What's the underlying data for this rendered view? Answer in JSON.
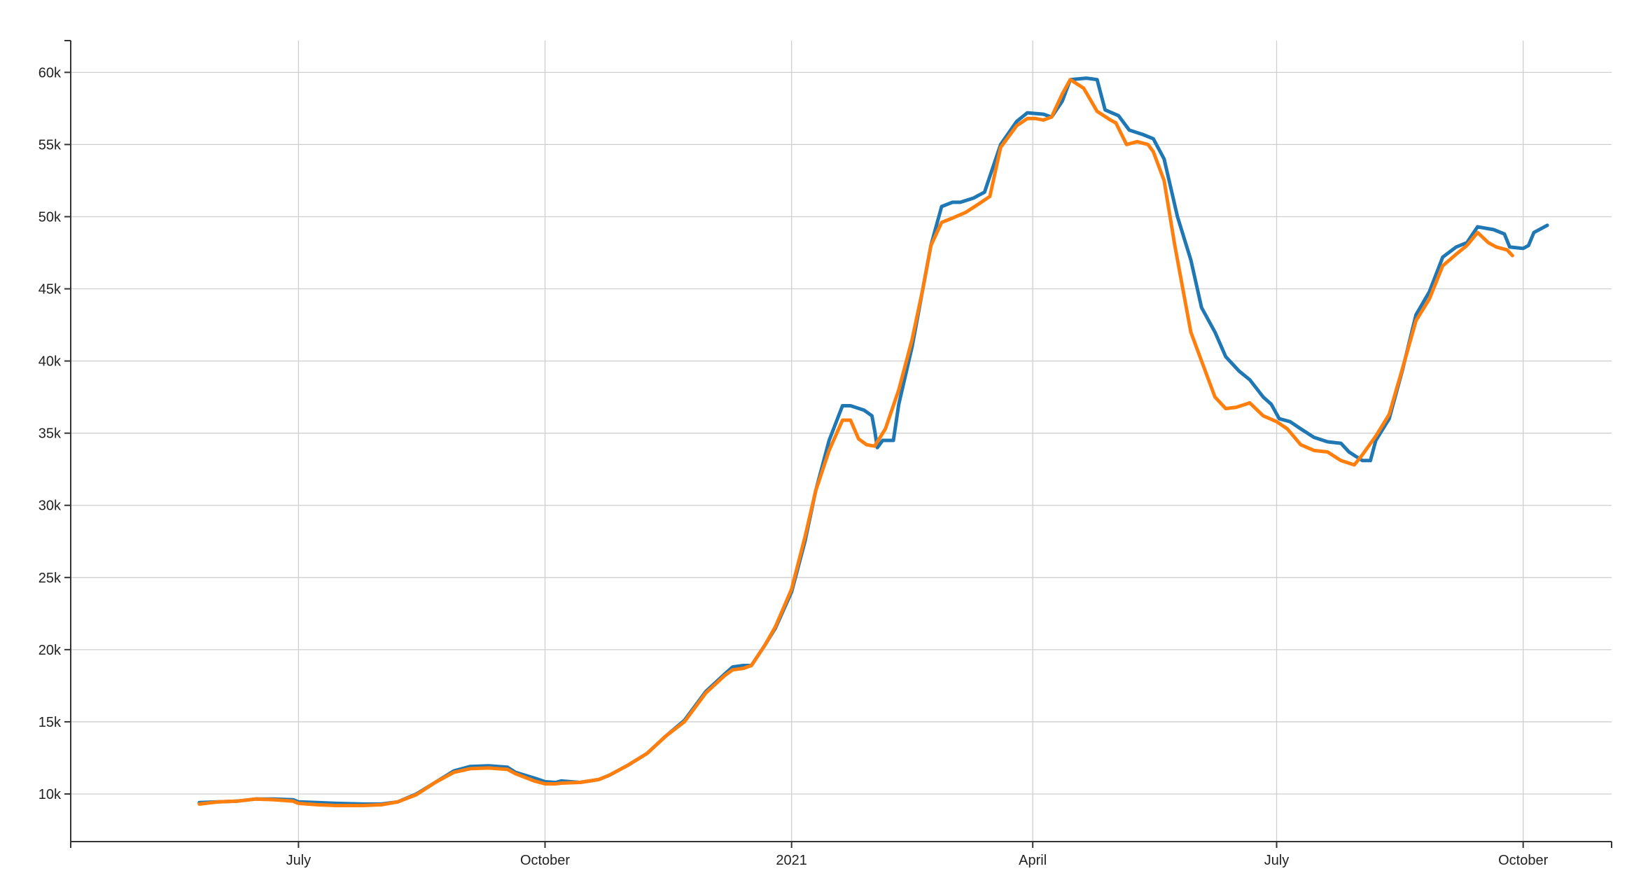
{
  "chart_data": {
    "type": "line",
    "title": "",
    "xlabel": "",
    "ylabel": "",
    "x_tick_labels": [
      "July",
      "October",
      "2021",
      "April",
      "July",
      "October"
    ],
    "x_tick_dates": [
      "2020-07-01",
      "2020-10-01",
      "2021-01-01",
      "2021-04-01",
      "2021-07-01",
      "2021-10-01"
    ],
    "y_ticks": [
      10000,
      15000,
      20000,
      25000,
      30000,
      35000,
      40000,
      45000,
      50000,
      55000,
      60000
    ],
    "y_tick_labels": [
      "10k",
      "15k",
      "20k",
      "25k",
      "30k",
      "35k",
      "40k",
      "45k",
      "50k",
      "55k",
      "60k"
    ],
    "xlim": [
      "2020-04-07",
      "2021-11-03"
    ],
    "ylim": [
      6700,
      62200
    ],
    "grid": true,
    "legend": "none",
    "series": [
      {
        "color": "#1f77b4",
        "points": [
          [
            "2020-05-25",
            9400
          ],
          [
            "2020-06-01",
            9450
          ],
          [
            "2020-06-08",
            9500
          ],
          [
            "2020-06-15",
            9650
          ],
          [
            "2020-06-22",
            9650
          ],
          [
            "2020-06-29",
            9600
          ],
          [
            "2020-07-01",
            9450
          ],
          [
            "2020-07-08",
            9400
          ],
          [
            "2020-07-15",
            9350
          ],
          [
            "2020-07-25",
            9300
          ],
          [
            "2020-08-01",
            9300
          ],
          [
            "2020-08-07",
            9450
          ],
          [
            "2020-08-14",
            10000
          ],
          [
            "2020-08-21",
            10800
          ],
          [
            "2020-08-28",
            11600
          ],
          [
            "2020-09-03",
            11900
          ],
          [
            "2020-09-10",
            11950
          ],
          [
            "2020-09-17",
            11850
          ],
          [
            "2020-09-20",
            11500
          ],
          [
            "2020-09-27",
            11100
          ],
          [
            "2020-10-01",
            10850
          ],
          [
            "2020-10-05",
            10800
          ],
          [
            "2020-10-07",
            10900
          ],
          [
            "2020-10-14",
            10800
          ],
          [
            "2020-10-21",
            11000
          ],
          [
            "2020-10-25",
            11300
          ],
          [
            "2020-11-01",
            12000
          ],
          [
            "2020-11-08",
            12800
          ],
          [
            "2020-11-15",
            14000
          ],
          [
            "2020-11-22",
            15100
          ],
          [
            "2020-11-30",
            17100
          ],
          [
            "2020-12-07",
            18300
          ],
          [
            "2020-12-10",
            18800
          ],
          [
            "2020-12-14",
            18900
          ],
          [
            "2020-12-17",
            18900
          ],
          [
            "2020-12-22",
            20300
          ],
          [
            "2020-12-26",
            21500
          ],
          [
            "2021-01-01",
            24000
          ],
          [
            "2021-01-06",
            27500
          ],
          [
            "2021-01-10",
            31000
          ],
          [
            "2021-01-15",
            34500
          ],
          [
            "2021-01-20",
            36900
          ],
          [
            "2021-01-23",
            36900
          ],
          [
            "2021-01-28",
            36600
          ],
          [
            "2021-01-31",
            36200
          ],
          [
            "2021-02-01",
            35200
          ],
          [
            "2021-02-02",
            34000
          ],
          [
            "2021-02-04",
            34500
          ],
          [
            "2021-02-08",
            34500
          ],
          [
            "2021-02-10",
            37000
          ],
          [
            "2021-02-15",
            41000
          ],
          [
            "2021-02-19",
            45000
          ],
          [
            "2021-02-22",
            48000
          ],
          [
            "2021-02-26",
            50700
          ],
          [
            "2021-03-02",
            51000
          ],
          [
            "2021-03-05",
            51000
          ],
          [
            "2021-03-10",
            51300
          ],
          [
            "2021-03-14",
            51700
          ],
          [
            "2021-03-20",
            55000
          ],
          [
            "2021-03-26",
            56600
          ],
          [
            "2021-03-30",
            57200
          ],
          [
            "2021-04-05",
            57100
          ],
          [
            "2021-04-08",
            56900
          ],
          [
            "2021-04-12",
            58000
          ],
          [
            "2021-04-15",
            59500
          ],
          [
            "2021-04-21",
            59600
          ],
          [
            "2021-04-25",
            59500
          ],
          [
            "2021-04-28",
            57400
          ],
          [
            "2021-05-03",
            57000
          ],
          [
            "2021-05-07",
            56000
          ],
          [
            "2021-05-12",
            55700
          ],
          [
            "2021-05-16",
            55400
          ],
          [
            "2021-05-20",
            54000
          ],
          [
            "2021-05-25",
            50000
          ],
          [
            "2021-05-30",
            47000
          ],
          [
            "2021-06-03",
            43700
          ],
          [
            "2021-06-08",
            42000
          ],
          [
            "2021-06-12",
            40300
          ],
          [
            "2021-06-17",
            39300
          ],
          [
            "2021-06-21",
            38700
          ],
          [
            "2021-06-26",
            37500
          ],
          [
            "2021-06-29",
            37000
          ],
          [
            "2021-07-02",
            36000
          ],
          [
            "2021-07-06",
            35800
          ],
          [
            "2021-07-10",
            35300
          ],
          [
            "2021-07-15",
            34700
          ],
          [
            "2021-07-20",
            34400
          ],
          [
            "2021-07-25",
            34300
          ],
          [
            "2021-07-28",
            33700
          ],
          [
            "2021-08-02",
            33100
          ],
          [
            "2021-08-05",
            33100
          ],
          [
            "2021-08-07",
            34500
          ],
          [
            "2021-08-12",
            36000
          ],
          [
            "2021-08-17",
            39400
          ],
          [
            "2021-08-22",
            43200
          ],
          [
            "2021-08-27",
            44800
          ],
          [
            "2021-09-01",
            47200
          ],
          [
            "2021-09-06",
            47900
          ],
          [
            "2021-09-10",
            48200
          ],
          [
            "2021-09-14",
            49300
          ],
          [
            "2021-09-20",
            49100
          ],
          [
            "2021-09-24",
            48800
          ],
          [
            "2021-09-26",
            47900
          ],
          [
            "2021-10-01",
            47800
          ],
          [
            "2021-10-03",
            48000
          ],
          [
            "2021-10-05",
            48900
          ],
          [
            "2021-10-10",
            49400
          ]
        ]
      },
      {
        "color": "#ff7f0e",
        "points": [
          [
            "2020-05-25",
            9300
          ],
          [
            "2020-06-01",
            9450
          ],
          [
            "2020-06-08",
            9500
          ],
          [
            "2020-06-15",
            9650
          ],
          [
            "2020-06-22",
            9600
          ],
          [
            "2020-06-29",
            9500
          ],
          [
            "2020-07-01",
            9350
          ],
          [
            "2020-07-08",
            9250
          ],
          [
            "2020-07-15",
            9200
          ],
          [
            "2020-07-25",
            9200
          ],
          [
            "2020-08-01",
            9250
          ],
          [
            "2020-08-07",
            9450
          ],
          [
            "2020-08-14",
            9950
          ],
          [
            "2020-08-21",
            10800
          ],
          [
            "2020-08-28",
            11500
          ],
          [
            "2020-09-03",
            11750
          ],
          [
            "2020-09-10",
            11800
          ],
          [
            "2020-09-17",
            11700
          ],
          [
            "2020-09-20",
            11400
          ],
          [
            "2020-09-27",
            10900
          ],
          [
            "2020-10-01",
            10700
          ],
          [
            "2020-10-05",
            10700
          ],
          [
            "2020-10-07",
            10750
          ],
          [
            "2020-10-14",
            10800
          ],
          [
            "2020-10-21",
            11000
          ],
          [
            "2020-10-25",
            11300
          ],
          [
            "2020-11-01",
            12000
          ],
          [
            "2020-11-08",
            12800
          ],
          [
            "2020-11-15",
            14000
          ],
          [
            "2020-11-22",
            15000
          ],
          [
            "2020-11-30",
            17000
          ],
          [
            "2020-12-07",
            18200
          ],
          [
            "2020-12-10",
            18600
          ],
          [
            "2020-12-14",
            18700
          ],
          [
            "2020-12-17",
            18900
          ],
          [
            "2020-12-22",
            20300
          ],
          [
            "2020-12-26",
            21600
          ],
          [
            "2021-01-01",
            24200
          ],
          [
            "2021-01-06",
            27800
          ],
          [
            "2021-01-10",
            31000
          ],
          [
            "2021-01-15",
            33800
          ],
          [
            "2021-01-20",
            35900
          ],
          [
            "2021-01-23",
            35900
          ],
          [
            "2021-01-26",
            34600
          ],
          [
            "2021-01-29",
            34200
          ],
          [
            "2021-02-01",
            34100
          ],
          [
            "2021-02-05",
            35300
          ],
          [
            "2021-02-10",
            38000
          ],
          [
            "2021-02-15",
            41500
          ],
          [
            "2021-02-19",
            45000
          ],
          [
            "2021-02-22",
            48000
          ],
          [
            "2021-02-26",
            49600
          ],
          [
            "2021-03-02",
            49900
          ],
          [
            "2021-03-07",
            50300
          ],
          [
            "2021-03-12",
            50900
          ],
          [
            "2021-03-16",
            51400
          ],
          [
            "2021-03-20",
            54800
          ],
          [
            "2021-03-26",
            56300
          ],
          [
            "2021-03-30",
            56800
          ],
          [
            "2021-04-02",
            56800
          ],
          [
            "2021-04-05",
            56700
          ],
          [
            "2021-04-08",
            56900
          ],
          [
            "2021-04-12",
            58500
          ],
          [
            "2021-04-15",
            59500
          ],
          [
            "2021-04-20",
            58900
          ],
          [
            "2021-04-25",
            57300
          ],
          [
            "2021-04-30",
            56700
          ],
          [
            "2021-05-02",
            56500
          ],
          [
            "2021-05-06",
            55000
          ],
          [
            "2021-05-10",
            55200
          ],
          [
            "2021-05-14",
            55000
          ],
          [
            "2021-05-16",
            54500
          ],
          [
            "2021-05-20",
            52500
          ],
          [
            "2021-05-24",
            48000
          ],
          [
            "2021-05-30",
            42000
          ],
          [
            "2021-06-03",
            40000
          ],
          [
            "2021-06-08",
            37500
          ],
          [
            "2021-06-12",
            36700
          ],
          [
            "2021-06-16",
            36800
          ],
          [
            "2021-06-21",
            37100
          ],
          [
            "2021-06-26",
            36200
          ],
          [
            "2021-07-01",
            35800
          ],
          [
            "2021-07-05",
            35300
          ],
          [
            "2021-07-10",
            34200
          ],
          [
            "2021-07-15",
            33800
          ],
          [
            "2021-07-20",
            33700
          ],
          [
            "2021-07-25",
            33100
          ],
          [
            "2021-07-30",
            32800
          ],
          [
            "2021-08-02",
            33500
          ],
          [
            "2021-08-07",
            34800
          ],
          [
            "2021-08-12",
            36300
          ],
          [
            "2021-08-17",
            39500
          ],
          [
            "2021-08-22",
            42800
          ],
          [
            "2021-08-27",
            44300
          ],
          [
            "2021-09-01",
            46600
          ],
          [
            "2021-09-06",
            47400
          ],
          [
            "2021-09-10",
            48000
          ],
          [
            "2021-09-14",
            48900
          ],
          [
            "2021-09-18",
            48200
          ],
          [
            "2021-09-21",
            47900
          ],
          [
            "2021-09-25",
            47700
          ],
          [
            "2021-09-27",
            47300
          ]
        ]
      }
    ]
  }
}
